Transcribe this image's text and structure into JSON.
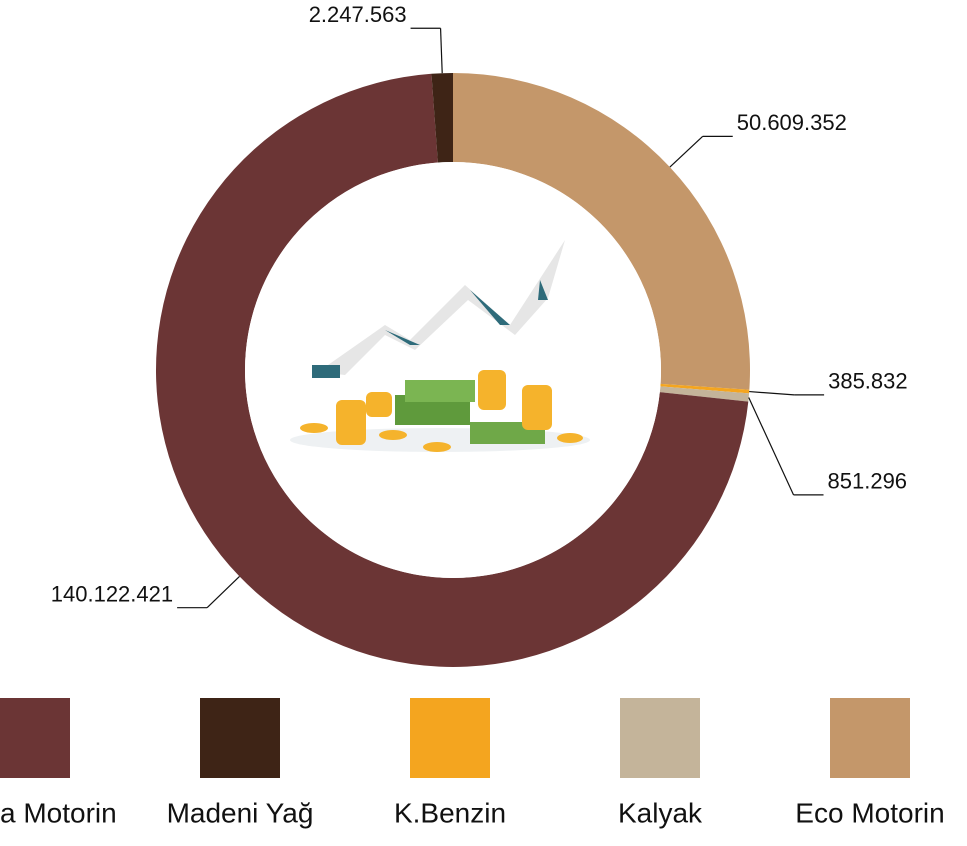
{
  "chart_data": {
    "type": "pie",
    "categories": [
      "a Motorin",
      "Madeni Yağ",
      "K.Benzin",
      "Kalyak",
      "Eco Motorin"
    ],
    "values": [
      140122421,
      2247563,
      385832,
      851296,
      50609352
    ],
    "value_labels": [
      "140.122.421",
      "2.247.563",
      "385.832",
      "851.296",
      "50.609.352"
    ],
    "colors": [
      "#6b3535",
      "#3e2416",
      "#f4a51f",
      "#c4b49a",
      "#c4976a"
    ],
    "donut": true
  }
}
